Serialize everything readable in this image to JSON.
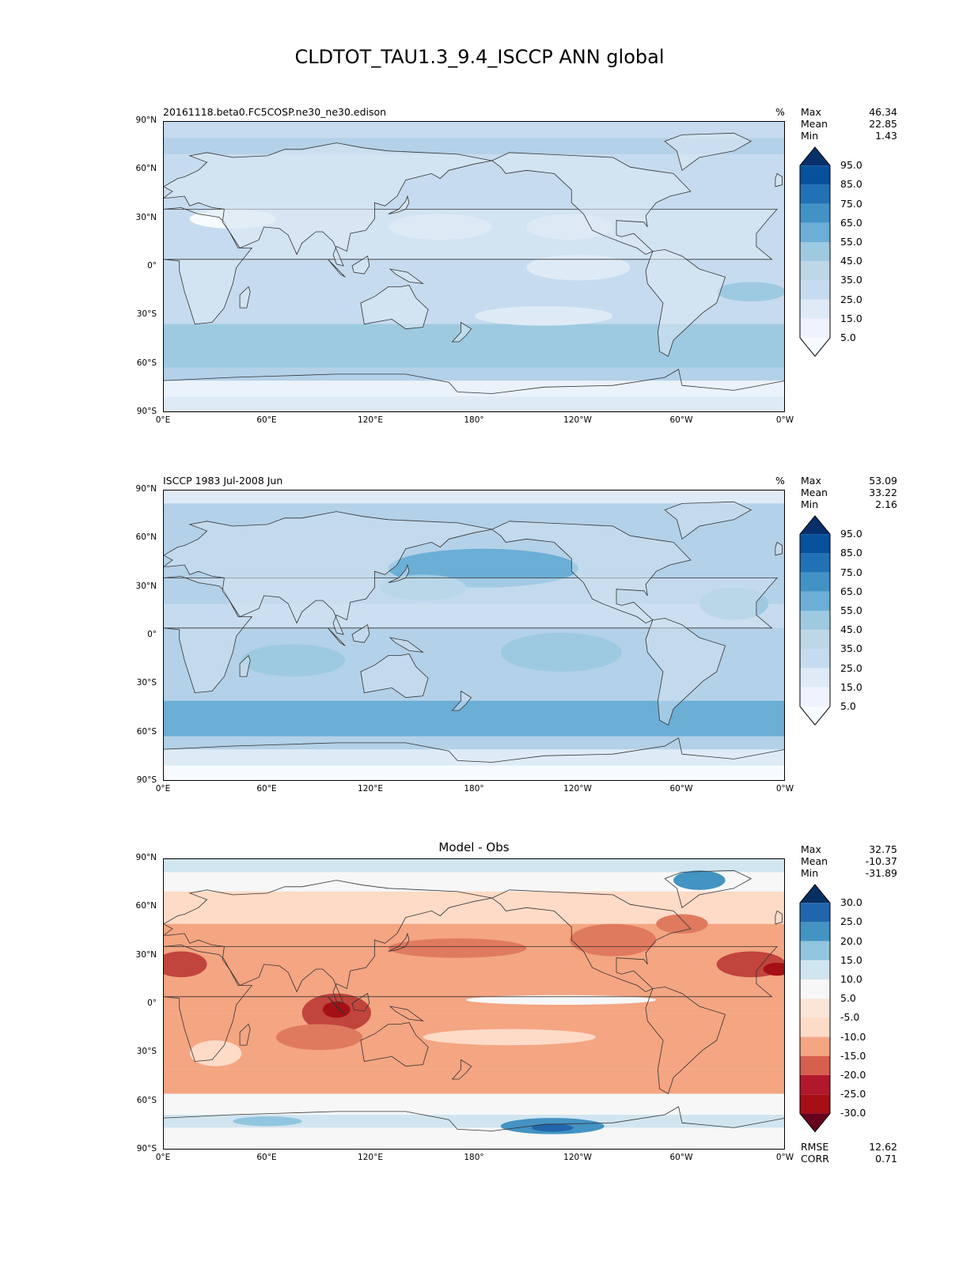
{
  "title": "CLDTOT_TAU1.3_9.4_ISCCP ANN global",
  "lat_ticks": [
    "90°N",
    "60°N",
    "30°N",
    "0°",
    "30°S",
    "60°S",
    "90°S"
  ],
  "lon_ticks": [
    "0°E",
    "60°E",
    "120°E",
    "180°",
    "120°W",
    "60°W",
    "0°W"
  ],
  "panels": [
    {
      "label": "20161118.beta0.FC5COSP.ne30_ne30.edison",
      "unit": "%",
      "stats": {
        "max_label": "Max",
        "max": "46.34",
        "mean_label": "Mean",
        "mean": "22.85",
        "min_label": "Min",
        "min": "1.43"
      },
      "colorbar": {
        "labels": [
          "95.0",
          "85.0",
          "75.0",
          "65.0",
          "55.0",
          "45.0",
          "35.0",
          "25.0",
          "15.0",
          "5.0"
        ],
        "colors": [
          "#08306b",
          "#08519c",
          "#2171b5",
          "#4292c6",
          "#6baed6",
          "#9ecae1",
          "#bdd7e7",
          "#c6dbef",
          "#deebf7",
          "#eff3ff",
          "#f7fbff"
        ]
      },
      "palette": "blues",
      "variant": "model"
    },
    {
      "label": "ISCCP 1983 Jul-2008 Jun",
      "unit": "%",
      "stats": {
        "max_label": "Max",
        "max": "53.09",
        "mean_label": "Mean",
        "mean": "33.22",
        "min_label": "Min",
        "min": "2.16"
      },
      "colorbar": {
        "labels": [
          "95.0",
          "85.0",
          "75.0",
          "65.0",
          "55.0",
          "45.0",
          "35.0",
          "25.0",
          "15.0",
          "5.0"
        ],
        "colors": [
          "#08306b",
          "#08519c",
          "#2171b5",
          "#4292c6",
          "#6baed6",
          "#9ecae1",
          "#bdd7e7",
          "#c6dbef",
          "#deebf7",
          "#eff3ff",
          "#f7fbff"
        ]
      },
      "palette": "blues",
      "variant": "obs"
    },
    {
      "center_title": "Model - Obs",
      "stats": {
        "max_label": "Max",
        "max": "32.75",
        "mean_label": "Mean",
        "mean": "-10.37",
        "min_label": "Min",
        "min": "-31.89"
      },
      "colorbar": {
        "labels": [
          "30.0",
          "25.0",
          "20.0",
          "15.0",
          "10.0",
          "5.0",
          "-5.0",
          "-10.0",
          "-15.0",
          "-20.0",
          "-25.0",
          "-30.0"
        ],
        "colors": [
          "#053061",
          "#2166ac",
          "#4393c3",
          "#92c5de",
          "#d1e5f0",
          "#f7f7f7",
          "#fbe5d9",
          "#fddbc7",
          "#f4a582",
          "#d6604d",
          "#b2182b",
          "#a50f15",
          "#67001f"
        ]
      },
      "palette": "diverging",
      "variant": "diff",
      "rmse_label": "RMSE",
      "rmse": "12.62",
      "corr_label": "CORR",
      "corr": "0.71"
    }
  ]
}
